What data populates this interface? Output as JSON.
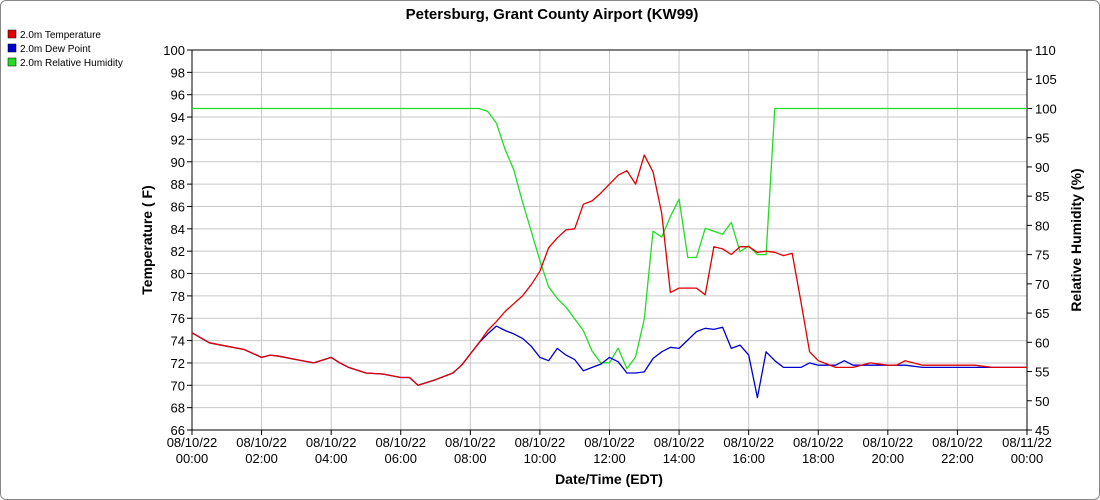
{
  "chart_data": {
    "type": "line",
    "title": "Petersburg, Grant County Airport (KW99)",
    "xlabel": "Date/Time (EDT)",
    "ylabel": "Temperature ( F)",
    "y2label": "Relative Humidity (%)",
    "xlim": [
      0,
      24
    ],
    "ylim": [
      66,
      100
    ],
    "y2lim": [
      45,
      110
    ],
    "grid": true,
    "legend_position": "top-left",
    "x_ticks": [
      {
        "value": 0,
        "date": "08/10/22",
        "time": "00:00"
      },
      {
        "value": 2,
        "date": "08/10/22",
        "time": "02:00"
      },
      {
        "value": 4,
        "date": "08/10/22",
        "time": "04:00"
      },
      {
        "value": 6,
        "date": "08/10/22",
        "time": "06:00"
      },
      {
        "value": 8,
        "date": "08/10/22",
        "time": "08:00"
      },
      {
        "value": 10,
        "date": "08/10/22",
        "time": "10:00"
      },
      {
        "value": 12,
        "date": "08/10/22",
        "time": "12:00"
      },
      {
        "value": 14,
        "date": "08/10/22",
        "time": "14:00"
      },
      {
        "value": 16,
        "date": "08/10/22",
        "time": "16:00"
      },
      {
        "value": 18,
        "date": "08/10/22",
        "time": "18:00"
      },
      {
        "value": 20,
        "date": "08/10/22",
        "time": "20:00"
      },
      {
        "value": 22,
        "date": "08/10/22",
        "time": "22:00"
      },
      {
        "value": 24,
        "date": "08/11/22",
        "time": "00:00"
      }
    ],
    "y_ticks": [
      "66",
      "68",
      "70",
      "72",
      "74",
      "76",
      "78",
      "80",
      "82",
      "84",
      "86",
      "88",
      "90",
      "92",
      "94",
      "96",
      "98",
      "100"
    ],
    "y2_ticks": [
      "45",
      "50",
      "55",
      "60",
      "65",
      "70",
      "75",
      "80",
      "85",
      "90",
      "95",
      "100",
      "105",
      "110"
    ],
    "series": [
      {
        "name": "2.0m Temperature",
        "color": "#e00000",
        "axis": "left",
        "x": [
          0.0,
          0.5,
          1.0,
          1.5,
          2.0,
          2.25,
          2.5,
          3.0,
          3.5,
          4.0,
          4.25,
          4.5,
          5.0,
          5.5,
          6.0,
          6.25,
          6.5,
          7.0,
          7.5,
          7.75,
          8.0,
          8.25,
          8.5,
          8.75,
          9.0,
          9.25,
          9.5,
          9.75,
          10.0,
          10.25,
          10.5,
          10.75,
          11.0,
          11.25,
          11.5,
          11.75,
          12.0,
          12.25,
          12.5,
          12.75,
          13.0,
          13.25,
          13.5,
          13.75,
          14.0,
          14.5,
          14.75,
          15.0,
          15.25,
          15.5,
          15.75,
          16.0,
          16.25,
          16.5,
          16.75,
          17.0,
          17.25,
          17.5,
          17.75,
          18.0,
          18.5,
          18.75,
          19.0,
          19.5,
          20.0,
          20.25,
          20.5,
          21.0,
          21.25,
          21.5,
          22.0,
          22.5,
          23.0,
          23.5,
          24.0
        ],
        "y": [
          74.7,
          73.8,
          73.5,
          73.2,
          72.5,
          72.7,
          72.6,
          72.3,
          72.0,
          72.5,
          72.0,
          71.6,
          71.1,
          71.0,
          70.7,
          70.7,
          70.0,
          70.5,
          71.1,
          71.8,
          72.8,
          73.8,
          74.9,
          75.7,
          76.6,
          77.3,
          78.0,
          79.0,
          80.2,
          82.3,
          83.2,
          83.9,
          84.0,
          86.2,
          86.5,
          87.2,
          88.0,
          88.8,
          89.2,
          88.0,
          90.6,
          89.1,
          85.4,
          78.3,
          78.7,
          78.7,
          78.1,
          82.4,
          82.2,
          81.7,
          82.4,
          82.4,
          81.9,
          82.0,
          81.9,
          81.6,
          81.8,
          77.5,
          73.0,
          72.2,
          71.6,
          71.6,
          71.6,
          72.0,
          71.8,
          71.8,
          72.2,
          71.8,
          71.8,
          71.8,
          71.8,
          71.8,
          71.6,
          71.6,
          71.6
        ]
      },
      {
        "name": "2.0m Dew Point",
        "color": "#0000d0",
        "axis": "left",
        "x": [
          0.0,
          0.5,
          1.0,
          1.5,
          2.0,
          2.25,
          2.5,
          3.0,
          3.5,
          4.0,
          4.25,
          4.5,
          5.0,
          5.5,
          6.0,
          6.25,
          6.5,
          7.0,
          7.5,
          7.75,
          8.0,
          8.25,
          8.5,
          8.75,
          9.0,
          9.25,
          9.5,
          9.75,
          10.0,
          10.25,
          10.5,
          10.75,
          11.0,
          11.25,
          11.5,
          11.75,
          12.0,
          12.25,
          12.5,
          12.75,
          13.0,
          13.25,
          13.5,
          13.75,
          14.0,
          14.5,
          14.75,
          15.0,
          15.25,
          15.5,
          15.75,
          16.0,
          16.25,
          16.5,
          16.75,
          17.0,
          17.25,
          17.5,
          17.75,
          18.0,
          18.5,
          18.75,
          19.0,
          19.5,
          20.0,
          20.25,
          20.5,
          21.0,
          21.25,
          21.5,
          22.0,
          22.5,
          23.0,
          23.5,
          24.0
        ],
        "y": [
          74.7,
          73.8,
          73.5,
          73.2,
          72.5,
          72.7,
          72.6,
          72.3,
          72.0,
          72.5,
          72.0,
          71.6,
          71.1,
          71.0,
          70.7,
          70.7,
          70.0,
          70.5,
          71.1,
          71.8,
          72.8,
          73.8,
          74.6,
          75.3,
          74.9,
          74.6,
          74.2,
          73.5,
          72.5,
          72.2,
          73.3,
          72.7,
          72.3,
          71.3,
          71.6,
          71.9,
          72.5,
          72.1,
          71.1,
          71.1,
          71.2,
          72.4,
          73.0,
          73.4,
          73.3,
          74.8,
          75.1,
          75.0,
          75.2,
          73.3,
          73.6,
          72.7,
          68.9,
          73.0,
          72.2,
          71.6,
          71.6,
          71.6,
          72.0,
          71.8,
          71.8,
          72.2,
          71.8,
          71.8,
          71.8,
          71.8,
          71.8,
          71.6,
          71.6,
          71.6,
          71.6,
          71.6,
          71.6,
          71.6,
          71.6
        ]
      },
      {
        "name": "2.0m Relative Humidity",
        "color": "#22dd22",
        "axis": "right",
        "x": [
          0.0,
          2.0,
          4.0,
          6.0,
          7.0,
          7.5,
          8.0,
          8.25,
          8.5,
          8.75,
          9.0,
          9.25,
          9.5,
          9.75,
          10.0,
          10.25,
          10.5,
          10.75,
          11.0,
          11.25,
          11.5,
          11.75,
          12.0,
          12.25,
          12.5,
          12.75,
          13.0,
          13.25,
          13.5,
          13.75,
          14.0,
          14.25,
          14.5,
          14.75,
          15.0,
          15.25,
          15.5,
          15.75,
          16.0,
          16.25,
          16.5,
          16.75,
          17.0,
          17.25,
          17.5,
          17.75,
          18.0,
          18.25,
          18.5,
          18.75,
          19.0,
          20.0,
          21.0,
          22.0,
          23.0,
          24.0
        ],
        "y": [
          100,
          100,
          100,
          100,
          100,
          100,
          100,
          100,
          99.5,
          97.5,
          93,
          89.5,
          84,
          79,
          74,
          69.5,
          67.5,
          66,
          64,
          62,
          58.5,
          56.5,
          56.5,
          59,
          55.5,
          57.5,
          64,
          79,
          78,
          81.5,
          84.5,
          74.5,
          74.5,
          79.5,
          79,
          78.5,
          80.5,
          75.5,
          76.5,
          75,
          75,
          100,
          100,
          100,
          100,
          100,
          100,
          100,
          100,
          100,
          100,
          100,
          100,
          100,
          100,
          100
        ]
      }
    ]
  }
}
